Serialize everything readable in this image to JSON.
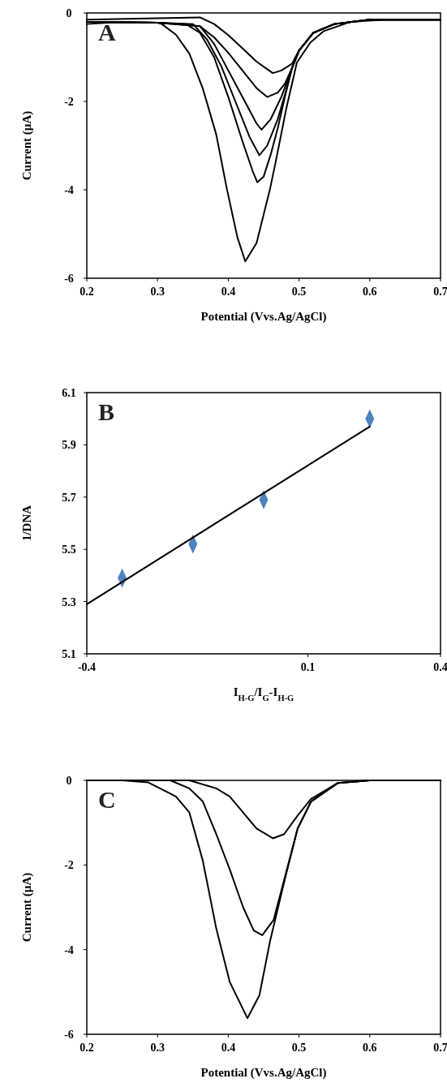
{
  "chart_data": [
    {
      "type": "line",
      "xlabel": "Potential (Vvs.Ag/AgCl)",
      "ylabel": "Current (µA)",
      "annotations": [
        "A"
      ],
      "xlim": [
        0.2,
        0.7
      ],
      "xticks": [
        0.2,
        0.3,
        0.4,
        0.5,
        0.6,
        0.7
      ],
      "ylim": [
        -6,
        0
      ],
      "yticks": [
        0,
        -2,
        -4,
        -6
      ],
      "grid": false,
      "marker": "none",
      "series": [
        {
          "color": "#000000",
          "x": [
            0.2,
            0.25,
            0.3,
            0.306,
            0.326,
            0.345,
            0.364,
            0.383,
            0.398,
            0.413,
            0.424,
            0.44,
            0.459,
            0.467,
            0.482,
            0.497,
            0.516,
            0.535,
            0.573,
            0.62,
            0.7
          ],
          "values": [
            -0.25,
            -0.2,
            -0.22,
            -0.25,
            -0.49,
            -0.92,
            -1.71,
            -2.75,
            -3.98,
            -5.08,
            -5.62,
            -5.2,
            -3.98,
            -3.37,
            -2.16,
            -1.12,
            -0.67,
            -0.41,
            -0.2,
            -0.15,
            -0.15
          ]
        },
        {
          "color": "#000000",
          "x": [
            0.2,
            0.3,
            0.34,
            0.36,
            0.38,
            0.4,
            0.42,
            0.435,
            0.441,
            0.45,
            0.46,
            0.47,
            0.48,
            0.49,
            0.5,
            0.52,
            0.55,
            0.6,
            0.7
          ],
          "values": [
            -0.2,
            -0.22,
            -0.25,
            -0.45,
            -1.0,
            -1.9,
            -2.9,
            -3.6,
            -3.83,
            -3.7,
            -3.2,
            -2.6,
            -1.9,
            -1.25,
            -0.85,
            -0.45,
            -0.25,
            -0.15,
            -0.15
          ]
        },
        {
          "color": "#000000",
          "x": [
            0.2,
            0.3,
            0.35,
            0.37,
            0.39,
            0.41,
            0.43,
            0.444,
            0.455,
            0.47,
            0.48,
            0.49,
            0.5,
            0.52,
            0.55,
            0.6,
            0.7
          ],
          "values": [
            -0.2,
            -0.22,
            -0.25,
            -0.6,
            -1.2,
            -2.0,
            -2.8,
            -3.22,
            -3.0,
            -2.4,
            -1.85,
            -1.25,
            -0.85,
            -0.45,
            -0.25,
            -0.15,
            -0.15
          ]
        },
        {
          "color": "#000000",
          "x": [
            0.2,
            0.3,
            0.36,
            0.38,
            0.4,
            0.42,
            0.44,
            0.447,
            0.46,
            0.475,
            0.49,
            0.5,
            0.52,
            0.55,
            0.6,
            0.7
          ],
          "values": [
            -0.2,
            -0.22,
            -0.3,
            -0.7,
            -1.3,
            -1.9,
            -2.5,
            -2.64,
            -2.4,
            -1.9,
            -1.25,
            -0.85,
            -0.45,
            -0.25,
            -0.15,
            -0.15
          ]
        },
        {
          "color": "#000000",
          "x": [
            0.2,
            0.3,
            0.36,
            0.38,
            0.4,
            0.42,
            0.44,
            0.455,
            0.47,
            0.48,
            0.49,
            0.5,
            0.52,
            0.55,
            0.6,
            0.7
          ],
          "values": [
            -0.2,
            -0.22,
            -0.3,
            -0.55,
            -0.9,
            -1.3,
            -1.7,
            -1.9,
            -1.8,
            -1.6,
            -1.25,
            -0.85,
            -0.45,
            -0.25,
            -0.15,
            -0.15
          ]
        },
        {
          "color": "#000000",
          "x": [
            0.2,
            0.3,
            0.36,
            0.38,
            0.4,
            0.42,
            0.44,
            0.463,
            0.475,
            0.49,
            0.5,
            0.52,
            0.55,
            0.6,
            0.7
          ],
          "values": [
            -0.15,
            -0.12,
            -0.1,
            -0.25,
            -0.5,
            -0.8,
            -1.1,
            -1.36,
            -1.3,
            -1.15,
            -0.85,
            -0.45,
            -0.25,
            -0.15,
            -0.15
          ]
        }
      ]
    },
    {
      "type": "scatter",
      "xlabel": "I$_{H-G}$/I$_{G}$-I$_{H-G}$",
      "ylabel": "1/DNA",
      "annotations": [
        "B"
      ],
      "xlim": [
        -0.4,
        0.4
      ],
      "xticks": [
        -0.4,
        0.1,
        0.4
      ],
      "ylim": [
        5.1,
        6.1
      ],
      "yticks": [
        5.1,
        5.3,
        5.5,
        5.7,
        5.9,
        6.1
      ],
      "grid": false,
      "series": [
        {
          "marker": "diamond",
          "color": "#4f81bd",
          "x": [
            -0.32,
            -0.16,
            0.0,
            0.24
          ],
          "values": [
            5.39,
            5.52,
            5.69,
            6.0
          ]
        },
        {
          "type": "line",
          "marker": "none",
          "color": "#000000",
          "x": [
            -0.4,
            0.24
          ],
          "values": [
            5.29,
            5.97
          ]
        }
      ]
    },
    {
      "type": "line",
      "xlabel": "Potential (Vvs.Ag/AgCl)",
      "ylabel": "Current (µA)",
      "annotations": [
        "C"
      ],
      "xlim": [
        0.2,
        0.7
      ],
      "xticks": [
        0.2,
        0.3,
        0.4,
        0.5,
        0.6,
        0.7
      ],
      "ylim": [
        -6,
        0
      ],
      "yticks": [
        0,
        -2,
        -4,
        -6
      ],
      "grid": false,
      "marker": "none",
      "series": [
        {
          "color": "#000000",
          "x": [
            0.2,
            0.25,
            0.287,
            0.326,
            0.345,
            0.364,
            0.383,
            0.402,
            0.427,
            0.444,
            0.459,
            0.479,
            0.498,
            0.517,
            0.555,
            0.6,
            0.7
          ],
          "values": [
            0,
            0,
            -0.05,
            -0.38,
            -0.76,
            -1.9,
            -3.5,
            -4.76,
            -5.62,
            -5.08,
            -3.8,
            -2.4,
            -1.14,
            -0.5,
            -0.06,
            0,
            0
          ]
        },
        {
          "color": "#000000",
          "x": [
            0.2,
            0.318,
            0.345,
            0.364,
            0.383,
            0.402,
            0.421,
            0.436,
            0.448,
            0.464,
            0.479,
            0.498,
            0.517,
            0.555,
            0.6,
            0.7
          ],
          "values": [
            0,
            0,
            -0.19,
            -0.5,
            -1.27,
            -2.1,
            -3.0,
            -3.55,
            -3.66,
            -3.3,
            -2.35,
            -1.14,
            -0.5,
            -0.06,
            0,
            0
          ]
        },
        {
          "color": "#000000",
          "x": [
            0.2,
            0.345,
            0.383,
            0.402,
            0.421,
            0.44,
            0.463,
            0.479,
            0.498,
            0.517,
            0.555,
            0.6,
            0.7
          ],
          "values": [
            0,
            0,
            -0.19,
            -0.38,
            -0.76,
            -1.14,
            -1.37,
            -1.27,
            -0.83,
            -0.44,
            -0.06,
            0,
            0
          ]
        }
      ]
    }
  ]
}
